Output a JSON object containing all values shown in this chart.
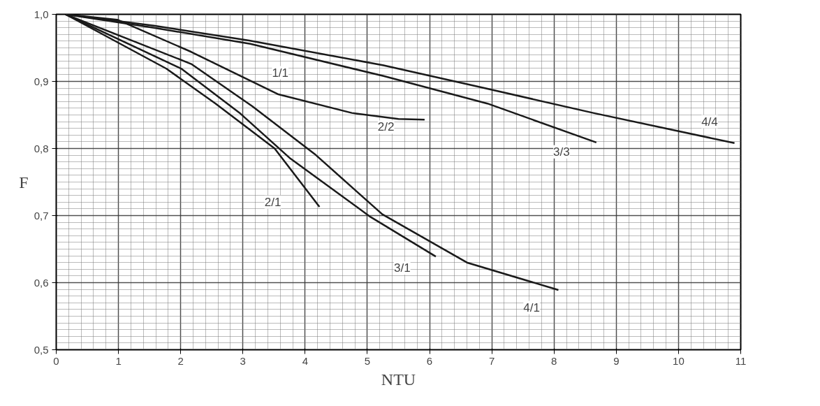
{
  "chart_data": {
    "type": "line",
    "xlabel": "NTU",
    "ylabel": "F",
    "xlim": [
      0,
      11
    ],
    "ylim": [
      0.5,
      1.0
    ],
    "xticks": [
      0,
      1,
      2,
      3,
      4,
      5,
      6,
      7,
      8,
      9,
      10,
      11
    ],
    "yticks": [
      {
        "value": 0.5,
        "label": "0,5"
      },
      {
        "value": 0.6,
        "label": "0,6"
      },
      {
        "value": 0.7,
        "label": "0,7"
      },
      {
        "value": 0.8,
        "label": "0,8"
      },
      {
        "value": 0.9,
        "label": "0,9"
      },
      {
        "value": 1.0,
        "label": "1,0"
      }
    ],
    "grid": true,
    "marker": "none",
    "line_style": "solid",
    "series": [
      {
        "color": "#1a1a1a",
        "x": [
          0.15,
          1.57,
          3.1,
          5.26,
          6.93,
          8.63,
          10.9
        ],
        "values": [
          1.0,
          0.983,
          0.961,
          0.924,
          0.889,
          0.853,
          0.808
        ]
      },
      {
        "color": "#1a1a1a",
        "x": [
          0.15,
          1.57,
          3.12,
          5.26,
          6.93,
          8.68
        ],
        "values": [
          1.0,
          0.98,
          0.956,
          0.908,
          0.867,
          0.809
        ]
      },
      {
        "color": "#1a1a1a",
        "x": [
          0.15,
          0.98,
          2.17,
          3.56,
          4.75,
          5.5,
          5.92
        ],
        "values": [
          1.0,
          0.992,
          0.944,
          0.881,
          0.853,
          0.844,
          0.843
        ]
      },
      {
        "color": "#1a1a1a",
        "x": [
          0.15,
          1.77,
          2.56,
          3.51,
          4.23
        ],
        "values": [
          1.0,
          0.919,
          0.867,
          0.8,
          0.713
        ]
      },
      {
        "color": "#1a1a1a",
        "x": [
          0.15,
          2.01,
          2.96,
          3.75,
          5.05,
          6.1
        ],
        "values": [
          1.0,
          0.919,
          0.852,
          0.786,
          0.698,
          0.639
        ]
      },
      {
        "color": "#1a1a1a",
        "x": [
          0.15,
          2.17,
          3.15,
          4.15,
          5.24,
          6.6,
          8.07
        ],
        "values": [
          1.0,
          0.926,
          0.863,
          0.792,
          0.702,
          0.63,
          0.589
        ]
      }
    ],
    "annotations": [
      {
        "text": "1/1",
        "x": 3.6,
        "y": 0.913
      },
      {
        "text": "2/2",
        "x": 5.3,
        "y": 0.832
      },
      {
        "text": "3/3",
        "x": 8.12,
        "y": 0.795
      },
      {
        "text": "4/4",
        "x": 10.5,
        "y": 0.84
      },
      {
        "text": "2/1",
        "x": 3.48,
        "y": 0.72
      },
      {
        "text": "3/1",
        "x": 5.56,
        "y": 0.622
      },
      {
        "text": "4/1",
        "x": 7.64,
        "y": 0.563
      }
    ]
  }
}
